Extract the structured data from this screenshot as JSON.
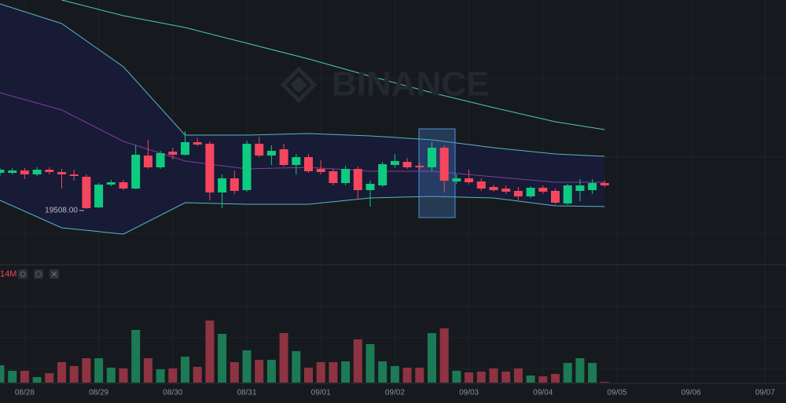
{
  "chart_data": {
    "type": "candlestick",
    "watermark": "BINANCE",
    "up_color": "#0ecb81",
    "down_color": "#f6465d",
    "ylim": [
      18818,
      22168
    ],
    "dates": [
      "08/28",
      "08/29",
      "08/30",
      "08/31",
      "09/01",
      "09/02",
      "09/03",
      "09/04",
      "09/05",
      "09/06",
      "09/07"
    ],
    "open": [
      19968,
      19968,
      19998,
      19948,
      20008,
      19978,
      19948,
      19918,
      19528,
      19818,
      19848,
      19768,
      20188,
      20038,
      20238,
      20198,
      20358,
      20338,
      19718,
      19898,
      19748,
      20338,
      20188,
      20268,
      20068,
      20168,
      20018,
      19988,
      19838,
      20018,
      19748,
      19808,
      20068,
      20108,
      20058,
      20038,
      20288,
      19858,
      19898,
      19858,
      19788,
      19768,
      19738,
      19668,
      19778,
      19738,
      19578,
      19738,
      19748,
      19838
    ],
    "high": [
      20028,
      20028,
      20028,
      20038,
      20038,
      20018,
      20008,
      19948,
      19838,
      19878,
      19878,
      20318,
      20388,
      20248,
      20288,
      20498,
      20408,
      20368,
      19948,
      19998,
      20378,
      20428,
      20318,
      20338,
      20208,
      20208,
      20128,
      20018,
      20058,
      20048,
      19868,
      20108,
      20208,
      20158,
      20098,
      20358,
      20318,
      19948,
      20008,
      19898,
      19818,
      19808,
      19788,
      19798,
      19808,
      19768,
      19828,
      19888,
      19888,
      19868
    ],
    "low": [
      19928,
      19948,
      19888,
      19928,
      19948,
      19768,
      19868,
      19508,
      19518,
      19798,
      19748,
      19758,
      20018,
      20018,
      20138,
      20188,
      20308,
      19618,
      19518,
      19698,
      19728,
      20168,
      20068,
      20048,
      19948,
      19968,
      19948,
      19808,
      19808,
      19628,
      19538,
      19788,
      20028,
      20018,
      20008,
      19988,
      19718,
      19828,
      19818,
      19738,
      19728,
      19698,
      19618,
      19648,
      19698,
      19568,
      19558,
      19608,
      19698,
      19788
    ],
    "close": [
      20008,
      19998,
      19948,
      20008,
      19978,
      19948,
      19928,
      19518,
      19818,
      19848,
      19768,
      20198,
      20038,
      20218,
      20198,
      20358,
      20328,
      19718,
      19898,
      19738,
      20338,
      20188,
      20248,
      20068,
      20168,
      19988,
      19978,
      19838,
      20018,
      19748,
      19828,
      20078,
      20118,
      20038,
      20038,
      20288,
      19868,
      19898,
      19848,
      19768,
      19748,
      19728,
      19668,
      19778,
      19728,
      19588,
      19808,
      19808,
      19838,
      19808
    ],
    "min_label": {
      "value": 19508,
      "label": "19508.00"
    },
    "overlays": {
      "x": [
        0,
        5,
        10,
        15,
        20,
        25,
        30,
        35,
        40,
        45,
        49
      ],
      "series": [
        {
          "color": "#5ab6c4",
          "values": [
            22118,
            21868,
            21318,
            20448,
            20448,
            20468,
            20438,
            20388,
            20288,
            20208,
            20178
          ]
        },
        {
          "color": "#5ab6c4",
          "values": [
            19618,
            19268,
            19188,
            19588,
            19568,
            19568,
            19648,
            19668,
            19648,
            19548,
            19538
          ]
        },
        {
          "color": "#7e3f9e",
          "values": [
            20988,
            20768,
            20368,
            20118,
            20018,
            20038,
            19988,
            19988,
            19918,
            19848,
            19848
          ]
        },
        {
          "color": "#4fc7bd",
          "values": [
            null,
            22168,
            21968,
            21818,
            21618,
            21418,
            21198,
            20988,
            20798,
            20618,
            20518
          ]
        }
      ],
      "fill": "#171b35"
    },
    "volume": {
      "label": "14M",
      "ylim": [
        0,
        14700
      ],
      "up_color": "#1c7a55",
      "down_color": "#8e3341",
      "values": [
        2200,
        1500,
        1500,
        700,
        1200,
        2600,
        2100,
        3100,
        3100,
        1900,
        1800,
        6700,
        3100,
        1700,
        1800,
        3300,
        2000,
        7900,
        6200,
        2600,
        4100,
        2900,
        2900,
        6300,
        4000,
        1900,
        2600,
        2600,
        2700,
        5500,
        4900,
        2700,
        2100,
        1900,
        1900,
        6300,
        6900,
        1500,
        1300,
        1400,
        1800,
        1400,
        1800,
        900,
        800,
        1100,
        2500,
        3100,
        2500,
        100
      ]
    }
  }
}
